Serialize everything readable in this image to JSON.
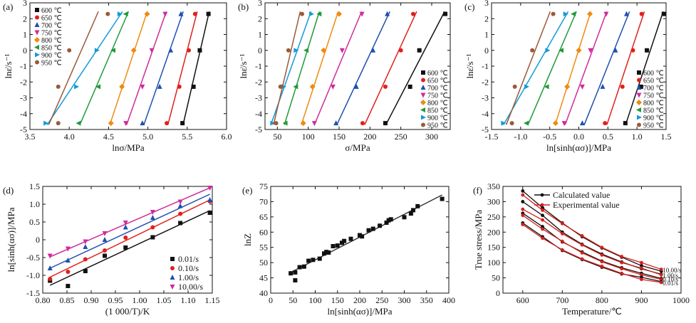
{
  "figure": "metallurgy-panels",
  "temps": [
    "600 ℃",
    "650 ℃",
    "700 ℃",
    "750 ℃",
    "800 ℃",
    "850 ℃",
    "900 ℃",
    "950 ℃"
  ],
  "temp_colors": [
    "#111111",
    "#e0201c",
    "#1f4fb0",
    "#d02b9a",
    "#f08a10",
    "#1f9a3a",
    "#139ad6",
    "#9a5a3a"
  ],
  "chart_data": [
    {
      "type": "scatter",
      "panel": "(a)",
      "xlabel": "lnσ/MPa",
      "ylabel": "lnε̇/s⁻¹",
      "xlim": [
        3.5,
        6.0
      ],
      "ylim": [
        -5,
        3
      ],
      "xticks": [
        "3.5",
        "4.0",
        "4.5",
        "5.0",
        "5.5",
        "6.0"
      ],
      "yticks": [
        "-5",
        "-4",
        "-3",
        "-2",
        "-1",
        "0",
        "1",
        "2",
        "3"
      ],
      "y": [
        2.3,
        0,
        -2.3,
        -4.6
      ],
      "series": [
        {
          "name": "600 ℃",
          "x": [
            5.77,
            5.66,
            5.58,
            5.44
          ]
        },
        {
          "name": "650 ℃",
          "x": [
            5.6,
            5.52,
            5.4,
            5.24
          ]
        },
        {
          "name": "700 ℃",
          "x": [
            5.42,
            5.29,
            5.15,
            4.93
          ]
        },
        {
          "name": "750 ℃",
          "x": [
            5.22,
            5.05,
            4.93,
            4.72
          ]
        },
        {
          "name": "800 ℃",
          "x": [
            4.99,
            4.82,
            4.67,
            4.53
          ]
        },
        {
          "name": "850 ℃",
          "x": [
            4.72,
            4.56,
            4.37,
            4.12
          ]
        },
        {
          "name": "900 ℃",
          "x": [
            4.64,
            4.35,
            4.09,
            3.7
          ]
        },
        {
          "name": "950 ℃",
          "x": [
            4.49,
            4.0,
            3.86,
            3.86
          ]
        }
      ]
    },
    {
      "type": "scatter",
      "panel": "(b)",
      "xlabel": "σ/MPa",
      "ylabel": "lnε̇/s⁻¹",
      "xlim": [
        30,
        330
      ],
      "ylim": [
        -5,
        3
      ],
      "xticks": [
        "50",
        "100",
        "150",
        "200",
        "250",
        "300"
      ],
      "yticks": [
        "-5",
        "-4",
        "-3",
        "-2",
        "-1",
        "0",
        "1",
        "2",
        "3"
      ],
      "y": [
        2.3,
        0,
        -2.3,
        -4.6
      ],
      "series": [
        {
          "name": "600 ℃",
          "x": [
            322,
            280,
            265,
            225
          ]
        },
        {
          "name": "650 ℃",
          "x": [
            270,
            250,
            225,
            188
          ]
        },
        {
          "name": "700 ℃",
          "x": [
            228,
            205,
            178,
            145
          ]
        },
        {
          "name": "750 ℃",
          "x": [
            187,
            155,
            140,
            110
          ]
        },
        {
          "name": "800 ℃",
          "x": [
            150,
            125,
            107,
            92
          ]
        },
        {
          "name": "850 ℃",
          "x": [
            118,
            97,
            80,
            63
          ]
        },
        {
          "name": "900 ℃",
          "x": [
            105,
            80,
            60,
            42
          ]
        },
        {
          "name": "950 ℃",
          "x": [
            90,
            68,
            55,
            48
          ]
        }
      ]
    },
    {
      "type": "scatter",
      "panel": "(c)",
      "xlabel": "ln[sinh(ασ)]/MPa",
      "ylabel": "lnε̇/s⁻¹",
      "xlim": [
        -1.5,
        1.5
      ],
      "ylim": [
        -5,
        3
      ],
      "xticks": [
        "-1.5",
        "-1.0",
        "-0.5",
        "0.0",
        "0.5",
        "1.0",
        "1.5"
      ],
      "yticks": [
        "-5",
        "-4",
        "-3",
        "-2",
        "-1",
        "0",
        "1",
        "2",
        "3"
      ],
      "y": [
        2.3,
        0,
        -2.3,
        -4.6
      ],
      "series": [
        {
          "name": "600 ℃",
          "x": [
            1.46,
            1.17,
            1.07,
            0.8
          ]
        },
        {
          "name": "650 ℃",
          "x": [
            1.08,
            0.93,
            0.75,
            0.45
          ]
        },
        {
          "name": "700 ℃",
          "x": [
            0.82,
            0.63,
            0.41,
            0.06
          ]
        },
        {
          "name": "750 ℃",
          "x": [
            0.47,
            0.2,
            0.06,
            -0.25
          ]
        },
        {
          "name": "800 ℃",
          "x": [
            0.19,
            0.0,
            -0.2,
            -0.4
          ]
        },
        {
          "name": "850 ℃",
          "x": [
            -0.09,
            -0.3,
            -0.55,
            -0.9
          ]
        },
        {
          "name": "900 ℃",
          "x": [
            -0.23,
            -0.54,
            -0.9,
            -1.3
          ]
        },
        {
          "name": "950 ℃",
          "x": [
            -0.44,
            -0.8,
            -1.1,
            -1.15
          ]
        }
      ]
    },
    {
      "type": "scatter",
      "panel": "(d)",
      "xlabel": "(1 000/T)/K",
      "ylabel": "ln[sinh(ασ)]/MPa",
      "xlim": [
        0.8,
        1.15
      ],
      "ylim": [
        -1.5,
        1.5
      ],
      "xticks": [
        "0.80",
        "0.85",
        "0.90",
        "0.95",
        "1.00",
        "1.05",
        "1.10",
        "1.15"
      ],
      "yticks": [
        "-1.5",
        "-1.0",
        "-0.5",
        "0",
        "0.5",
        "1.0",
        "1.5"
      ],
      "x": [
        0.815,
        0.852,
        0.888,
        0.928,
        0.971,
        1.027,
        1.084,
        1.145
      ],
      "series": [
        {
          "name": "0.01/s",
          "values": [
            -1.15,
            -1.3,
            -0.88,
            -0.45,
            -0.22,
            0.07,
            0.47,
            0.76
          ]
        },
        {
          "name": "0.10/s",
          "values": [
            -1.1,
            -0.9,
            -0.55,
            -0.3,
            0.06,
            0.35,
            0.73,
            1.08
          ]
        },
        {
          "name": "1.00/s",
          "values": [
            -0.8,
            -0.58,
            -0.2,
            0.0,
            0.35,
            0.62,
            0.95,
            1.12
          ]
        },
        {
          "name": "10.00/s",
          "values": [
            -0.45,
            -0.25,
            -0.05,
            0.18,
            0.48,
            0.78,
            1.07,
            1.46
          ]
        }
      ],
      "fits": [
        [
          -1.28,
          0.82
        ],
        [
          -1.05,
          1.12
        ],
        [
          -0.8,
          1.28
        ],
        [
          -0.48,
          1.46
        ]
      ]
    },
    {
      "type": "scatter",
      "panel": "(e)",
      "xlabel": "ln[sinh(ασ)]/MPa",
      "ylabel": "lnZ",
      "xlim": [
        0,
        400
      ],
      "ylim": [
        40,
        75
      ],
      "xticks": [
        "0",
        "50",
        "100",
        "150",
        "200",
        "250",
        "300",
        "350",
        "400"
      ],
      "yticks": [
        "40",
        "45",
        "50",
        "55",
        "60",
        "65",
        "70",
        "75"
      ],
      "points": [
        [
          45,
          46.5
        ],
        [
          55,
          46.8
        ],
        [
          55,
          44.2
        ],
        [
          65,
          48.5
        ],
        [
          75,
          48.7
        ],
        [
          85,
          50.6
        ],
        [
          95,
          50.9
        ],
        [
          110,
          51.3
        ],
        [
          120,
          53.0
        ],
        [
          125,
          53.5
        ],
        [
          130,
          53.3
        ],
        [
          140,
          55.4
        ],
        [
          150,
          55.6
        ],
        [
          160,
          56.5
        ],
        [
          165,
          57.1
        ],
        [
          180,
          57.8
        ],
        [
          200,
          59.0
        ],
        [
          205,
          58.6
        ],
        [
          220,
          60.6
        ],
        [
          230,
          61.1
        ],
        [
          245,
          62.1
        ],
        [
          260,
          63.1
        ],
        [
          265,
          63.9
        ],
        [
          270,
          64.2
        ],
        [
          300,
          64.9
        ],
        [
          315,
          66.1
        ],
        [
          320,
          67.2
        ],
        [
          330,
          68.5
        ],
        [
          385,
          70.9
        ]
      ],
      "fit": [
        [
          45,
          46.8
        ],
        [
          385,
          72.2
        ]
      ]
    },
    {
      "type": "line",
      "panel": "(f)",
      "xlabel": "Temperature/℃",
      "ylabel": "True stress/MPa",
      "xlim": [
        550,
        1000
      ],
      "ylim": [
        0,
        350
      ],
      "xticks": [
        "600",
        "700",
        "800",
        "900",
        "1000"
      ],
      "yticks": [
        "0",
        "50",
        "100",
        "150",
        "200",
        "250",
        "300",
        "350"
      ],
      "x": [
        600,
        650,
        700,
        750,
        800,
        850,
        900,
        950
      ],
      "series": [
        {
          "name": "Calculated value",
          "values": [
            335,
            280,
            230,
            185,
            148,
            118,
            90,
            72
          ]
        },
        {
          "name": "Experimental value",
          "values": [
            322,
            272,
            228,
            188,
            150,
            120,
            100,
            78
          ]
        },
        {
          "name": "Calculated value",
          "values": [
            300,
            255,
            200,
            160,
            128,
            102,
            80,
            62
          ]
        },
        {
          "name": "Experimental value",
          "values": [
            275,
            240,
            195,
            158,
            125,
            100,
            82,
            60
          ]
        },
        {
          "name": "Calculated value",
          "values": [
            262,
            218,
            168,
            135,
            105,
            83,
            65,
            48
          ]
        },
        {
          "name": "Experimental value",
          "values": [
            255,
            210,
            170,
            132,
            103,
            80,
            60,
            45
          ]
        },
        {
          "name": "Calculated value",
          "values": [
            230,
            185,
            140,
            110,
            85,
            63,
            52,
            38
          ]
        },
        {
          "name": "Experimental value",
          "values": [
            225,
            180,
            142,
            112,
            88,
            65,
            45,
            35
          ]
        }
      ],
      "legend": [
        "Calculated value",
        "Experimental value"
      ],
      "rate_labels": [
        "10.00/s",
        "1.00/s",
        "0.10/s",
        "0.01/s"
      ]
    }
  ]
}
